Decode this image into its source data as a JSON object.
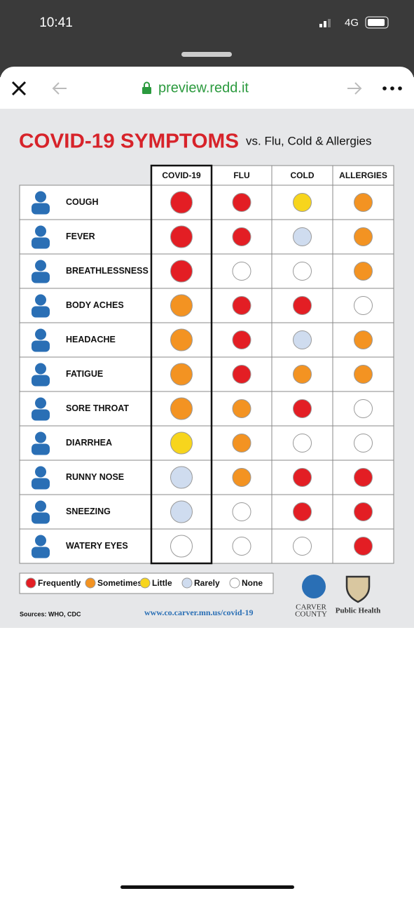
{
  "status_bar": {
    "time": "10:41",
    "network": "4G"
  },
  "browser": {
    "url": "preview.redd.it"
  },
  "infographic": {
    "title": "COVID-19 SYMPTOMS",
    "subtitle": "vs. Flu, Cold & Allergies",
    "columns": [
      "COVID-19",
      "FLU",
      "COLD",
      "ALLERGIES"
    ],
    "legend": [
      {
        "label": "Frequently",
        "color": "#e31e24"
      },
      {
        "label": "Sometimes",
        "color": "#f39322"
      },
      {
        "label": "Little",
        "color": "#f7d51d"
      },
      {
        "label": "Rarely",
        "color": "#cfdcef"
      },
      {
        "label": "None",
        "color": "#ffffff"
      }
    ],
    "rows": [
      {
        "label": "COUGH",
        "levels": [
          "Frequently",
          "Frequently",
          "Little",
          "Sometimes"
        ]
      },
      {
        "label": "FEVER",
        "levels": [
          "Frequently",
          "Frequently",
          "Rarely",
          "Sometimes"
        ]
      },
      {
        "label": "BREATHLESSNESS",
        "levels": [
          "Frequently",
          "None",
          "None",
          "Sometimes"
        ]
      },
      {
        "label": "BODY ACHES",
        "levels": [
          "Sometimes",
          "Frequently",
          "Frequently",
          "None"
        ]
      },
      {
        "label": "HEADACHE",
        "levels": [
          "Sometimes",
          "Frequently",
          "Rarely",
          "Sometimes"
        ]
      },
      {
        "label": "FATIGUE",
        "levels": [
          "Sometimes",
          "Frequently",
          "Sometimes",
          "Sometimes"
        ]
      },
      {
        "label": "SORE THROAT",
        "levels": [
          "Sometimes",
          "Sometimes",
          "Frequently",
          "None"
        ]
      },
      {
        "label": "DIARRHEA",
        "levels": [
          "Little",
          "Sometimes",
          "None",
          "None"
        ]
      },
      {
        "label": "RUNNY NOSE",
        "levels": [
          "Rarely",
          "Sometimes",
          "Frequently",
          "Frequently"
        ]
      },
      {
        "label": "SNEEZING",
        "levels": [
          "Rarely",
          "None",
          "Frequently",
          "Frequently"
        ]
      },
      {
        "label": "WATERY EYES",
        "levels": [
          "None",
          "None",
          "None",
          "Frequently"
        ]
      }
    ],
    "sources": "Sources: WHO, CDC",
    "website": "www.co.carver.mn.us/covid-19",
    "logo_left": [
      "CARVER",
      "COUNTY"
    ],
    "logo_right": "Public Health"
  }
}
